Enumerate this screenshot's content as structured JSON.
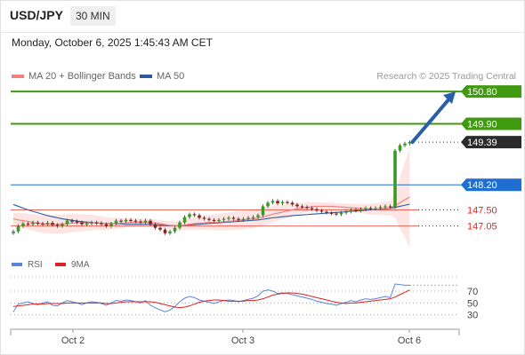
{
  "header": {
    "pair": "USD/JPY",
    "timeframe": "30 MIN"
  },
  "timestamp": "Monday, October 6, 2025 1:45:43 AM CET",
  "legend": {
    "ma20_label": "MA 20 + Bollinger Bands",
    "ma50_label": "MA 50",
    "credit": "Research © 2025 Trading Central"
  },
  "rsi_legend": {
    "rsi_label": "RSI",
    "ma_label": "9MA"
  },
  "colors": {
    "green_level": "#3f9a0f",
    "blue_level": "#1f6fd0",
    "red_level": "#e83828",
    "dark_tag": "#2b2b2b",
    "ma20": "#f08080",
    "ma50": "#2d5aa0",
    "band_fill": "#fde0de",
    "arrow": "#2a5ea8",
    "rsi_line": "#5b84d6",
    "rsi_ma": "#e02020"
  },
  "chart_data": {
    "type": "candlestick",
    "y_range": [
      146.3,
      151.0
    ],
    "x_ticks": [
      "Oct 2",
      "Oct 3",
      "Oct 6"
    ],
    "current_price": 149.39,
    "levels": [
      {
        "value": 150.8,
        "label": "150.80",
        "kind": "green_tag"
      },
      {
        "value": 149.9,
        "label": "149.90",
        "kind": "green_tag"
      },
      {
        "value": 149.39,
        "label": "149.39",
        "kind": "dark_tag"
      },
      {
        "value": 148.2,
        "label": "148.20",
        "kind": "blue_tag"
      },
      {
        "value": 147.5,
        "label": "147.50",
        "kind": "red_text"
      },
      {
        "value": 147.05,
        "label": "147.05",
        "kind": "red_text"
      }
    ],
    "arrow": {
      "from_price": 149.39,
      "to_price": 150.8
    },
    "closes": [
      146.9,
      147.05,
      147.12,
      147.1,
      147.15,
      147.12,
      147.1,
      147.14,
      147.08,
      147.05,
      147.1,
      147.2,
      147.18,
      147.15,
      147.1,
      147.12,
      147.15,
      147.13,
      147.1,
      147.05,
      147.12,
      147.2,
      147.18,
      147.22,
      147.2,
      147.18,
      147.15,
      147.2,
      147.1,
      147.0,
      146.95,
      146.85,
      146.9,
      147.0,
      147.15,
      147.3,
      147.38,
      147.35,
      147.28,
      147.25,
      147.22,
      147.2,
      147.22,
      147.25,
      147.28,
      147.25,
      147.22,
      147.25,
      147.28,
      147.3,
      147.35,
      147.6,
      147.7,
      147.75,
      147.68,
      147.72,
      147.7,
      147.65,
      147.6,
      147.58,
      147.55,
      147.52,
      147.48,
      147.45,
      147.42,
      147.4,
      147.38,
      147.42,
      147.45,
      147.5,
      147.48,
      147.52,
      147.55,
      147.53,
      147.55,
      147.58,
      147.6,
      147.58,
      149.15,
      149.3,
      149.35,
      149.39
    ],
    "sma20": [
      147.25,
      147.22,
      147.2,
      147.18,
      147.15,
      147.12,
      147.11,
      147.1,
      147.09,
      147.1,
      147.1,
      147.12,
      147.13,
      147.14,
      147.14,
      147.14,
      147.14,
      147.14,
      147.13,
      147.12,
      147.12,
      147.12,
      147.13,
      147.14,
      147.15,
      147.15,
      147.15,
      147.16,
      147.15,
      147.14,
      147.12,
      147.09,
      147.07,
      147.06,
      147.06,
      147.08,
      147.1,
      147.12,
      147.13,
      147.14,
      147.15,
      147.15,
      147.16,
      147.17,
      147.18,
      147.19,
      147.21,
      147.22,
      147.24,
      147.25,
      147.27,
      147.3,
      147.34,
      147.38,
      147.41,
      147.44,
      147.47,
      147.5,
      147.53,
      147.55,
      147.57,
      147.59,
      147.6,
      147.6,
      147.6,
      147.6,
      147.59,
      147.58,
      147.57,
      147.56,
      147.55,
      147.54,
      147.53,
      147.52,
      147.52,
      147.53,
      147.54,
      147.55,
      147.62,
      147.7,
      147.78,
      147.86
    ],
    "sma50": [
      147.65,
      147.6,
      147.55,
      147.5,
      147.46,
      147.42,
      147.38,
      147.34,
      147.31,
      147.28,
      147.25,
      147.23,
      147.21,
      147.19,
      147.17,
      147.16,
      147.15,
      147.14,
      147.13,
      147.12,
      147.12,
      147.11,
      147.11,
      147.1,
      147.1,
      147.1,
      147.1,
      147.1,
      147.1,
      147.09,
      147.08,
      147.07,
      147.06,
      147.06,
      147.06,
      147.07,
      147.08,
      147.09,
      147.1,
      147.11,
      147.12,
      147.13,
      147.14,
      147.15,
      147.16,
      147.17,
      147.18,
      147.19,
      147.2,
      147.21,
      147.22,
      147.24,
      147.26,
      147.28,
      147.29,
      147.31,
      147.32,
      147.34,
      147.35,
      147.36,
      147.37,
      147.38,
      147.39,
      147.4,
      147.41,
      147.42,
      147.43,
      147.44,
      147.45,
      147.46,
      147.47,
      147.48,
      147.49,
      147.5,
      147.51,
      147.52,
      147.53,
      147.54,
      147.57,
      147.6,
      147.63,
      147.66
    ],
    "rsi": {
      "y_range": [
        10,
        100
      ],
      "ticks": [
        70,
        50,
        30
      ],
      "rsi": [
        35,
        48,
        50,
        52,
        49,
        47,
        50,
        52,
        46,
        45,
        50,
        54,
        52,
        50,
        47,
        50,
        52,
        51,
        49,
        46,
        50,
        54,
        53,
        55,
        54,
        52,
        50,
        54,
        46,
        42,
        38,
        35,
        38,
        44,
        52,
        58,
        61,
        59,
        55,
        53,
        51,
        49,
        52,
        54,
        55,
        54,
        52,
        54,
        56,
        58,
        62,
        70,
        72,
        70,
        66,
        67,
        66,
        64,
        62,
        60,
        58,
        56,
        53,
        51,
        49,
        48,
        46,
        49,
        51,
        54,
        52,
        55,
        57,
        56,
        57,
        59,
        61,
        59,
        82,
        81,
        80,
        80
      ],
      "ma9": [
        44,
        45,
        46,
        47,
        48,
        48,
        48,
        49,
        49,
        49,
        49,
        50,
        50,
        50,
        50,
        50,
        50,
        50,
        50,
        49,
        49,
        50,
        51,
        52,
        52,
        52,
        52,
        52,
        52,
        51,
        49,
        47,
        45,
        43,
        42,
        43,
        45,
        48,
        51,
        53,
        54,
        55,
        55,
        54,
        53,
        53,
        53,
        53,
        54,
        54,
        55,
        57,
        60,
        63,
        65,
        66,
        67,
        67,
        66,
        65,
        63,
        61,
        59,
        57,
        55,
        53,
        51,
        50,
        49,
        50,
        50,
        51,
        52,
        53,
        54,
        55,
        56,
        57,
        60,
        64,
        68,
        72
      ]
    }
  }
}
